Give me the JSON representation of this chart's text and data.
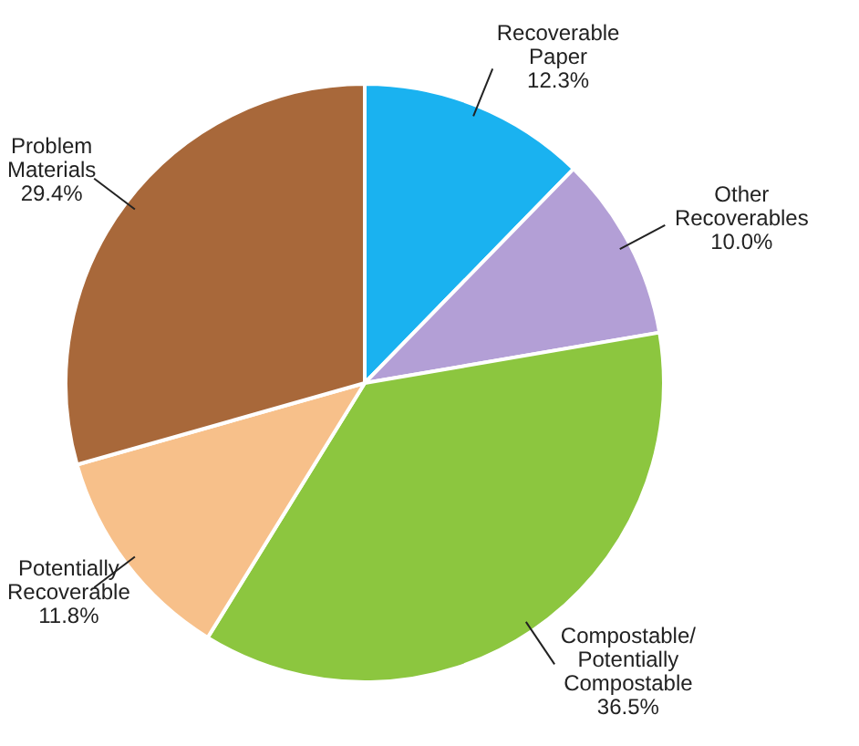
{
  "chart_data": {
    "type": "pie",
    "categories": [
      "Recoverable Paper",
      "Other Recoverables",
      "Compostable/Potentially Compostable",
      "Potentially Recoverable",
      "Problem Materials"
    ],
    "values": [
      12.3,
      10.0,
      36.5,
      11.8,
      29.4
    ],
    "value_labels": [
      "12.3%",
      "10.0%",
      "36.5%",
      "11.8%",
      "29.4%"
    ],
    "colors": [
      "#1ab2f0",
      "#b39fd6",
      "#8cc63f",
      "#f7c08a",
      "#a8683a"
    ]
  }
}
